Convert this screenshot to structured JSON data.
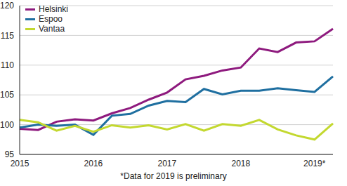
{
  "chart_data": {
    "type": "line",
    "annotation": "*Data for 2019 is preliminary",
    "categories": [
      "2015",
      null,
      null,
      null,
      "2016",
      null,
      null,
      null,
      "2017",
      null,
      null,
      null,
      "2018",
      null,
      null,
      null,
      "2019*",
      null
    ],
    "series": [
      {
        "name": "Helsinki",
        "color": "#8e1a7e",
        "values": [
          99.3,
          99.1,
          100.5,
          100.9,
          100.7,
          101.9,
          102.8,
          104.2,
          105.4,
          107.6,
          108.2,
          109.1,
          109.6,
          112.8,
          112.2,
          113.8,
          114.0,
          116.1
        ]
      },
      {
        "name": "Espoo",
        "color": "#1f6fa0",
        "values": [
          99.5,
          100.0,
          99.8,
          100.0,
          98.3,
          101.5,
          101.8,
          103.2,
          104.0,
          103.8,
          106.0,
          105.1,
          105.7,
          105.7,
          106.1,
          105.8,
          105.5,
          108.1
        ]
      },
      {
        "name": "Vantaa",
        "color": "#c3d82f",
        "values": [
          100.8,
          100.4,
          99.0,
          99.8,
          98.8,
          99.9,
          99.5,
          99.9,
          99.2,
          100.1,
          99.0,
          100.1,
          99.8,
          100.8,
          99.2,
          98.2,
          97.5,
          100.2
        ]
      }
    ],
    "ylim": [
      95,
      120
    ],
    "yticks": [
      95,
      100,
      105,
      110,
      115,
      120
    ],
    "grid": true,
    "legend": "top-left"
  }
}
